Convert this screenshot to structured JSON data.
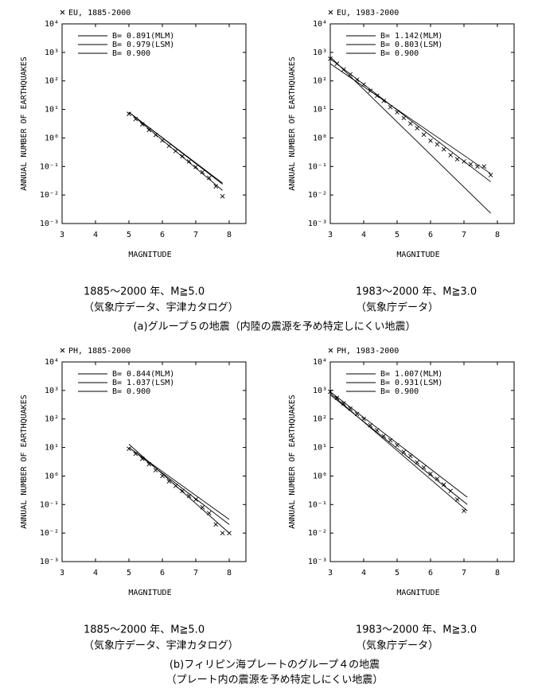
{
  "chart_data": [
    {
      "type": "line",
      "log_y": true,
      "xlabel": "MAGNITUDE",
      "ylabel": "ANNUAL NUMBER OF EARTHQUAKES",
      "xlim": [
        3,
        8.5
      ],
      "ylim": [
        0.001,
        10000
      ],
      "xticks": [
        3,
        4,
        5,
        6,
        7,
        8
      ],
      "yticks": [
        {
          "value": 0.001,
          "label": "10⁻³"
        },
        {
          "value": 0.01,
          "label": "10⁻²"
        },
        {
          "value": 0.1,
          "label": "10⁻¹"
        },
        {
          "value": 1,
          "label": "10⁰"
        },
        {
          "value": 10,
          "label": "10¹"
        },
        {
          "value": 100,
          "label": "10²"
        },
        {
          "value": 1000,
          "label": "10³"
        },
        {
          "value": 10000,
          "label": "10⁴"
        }
      ],
      "series": [
        {
          "name": "EU, 1885-2000",
          "marker": "x",
          "color": "#000000",
          "x": [
            5.0,
            5.2,
            5.4,
            5.6,
            5.8,
            6.0,
            6.2,
            6.4,
            6.6,
            6.8,
            7.0,
            7.2,
            7.4,
            7.6,
            7.8
          ],
          "values": [
            7,
            4.6,
            3.0,
            1.9,
            1.27,
            0.82,
            0.53,
            0.35,
            0.23,
            0.15,
            0.097,
            0.063,
            0.04,
            0.02,
            0.009
          ]
        },
        {
          "name": "B= 0.891(MLM)",
          "color": "#000000",
          "x": [
            5.0,
            7.8
          ],
          "values": [
            8,
            0.026
          ]
        },
        {
          "name": "B= 0.979(LSM)",
          "color": "#000000",
          "x": [
            5.0,
            7.8
          ],
          "values": [
            8,
            0.0145
          ]
        },
        {
          "name": "B= 0.900",
          "color": "#000000",
          "x": [
            5.0,
            7.8
          ],
          "values": [
            8,
            0.024
          ]
        }
      ]
    },
    {
      "type": "line",
      "log_y": true,
      "xlabel": "MAGNITUDE",
      "ylabel": "ANNUAL NUMBER OF EARTHQUAKES",
      "xlim": [
        3,
        8.5
      ],
      "ylim": [
        0.001,
        10000
      ],
      "xticks": [
        3,
        4,
        5,
        6,
        7,
        8
      ],
      "yticks": [
        {
          "value": 0.001,
          "label": "10⁻³"
        },
        {
          "value": 0.01,
          "label": "10⁻²"
        },
        {
          "value": 0.1,
          "label": "10⁻¹"
        },
        {
          "value": 1,
          "label": "10⁰"
        },
        {
          "value": 10,
          "label": "10¹"
        },
        {
          "value": 100,
          "label": "10²"
        },
        {
          "value": 1000,
          "label": "10³"
        },
        {
          "value": 10000,
          "label": "10⁴"
        }
      ],
      "series": [
        {
          "name": "EU, 1983-2000",
          "marker": "x",
          "color": "#000000",
          "x": [
            3.0,
            3.2,
            3.4,
            3.6,
            3.8,
            4.0,
            4.2,
            4.4,
            4.6,
            4.8,
            5.0,
            5.2,
            5.4,
            5.6,
            5.8,
            6.0,
            6.2,
            6.4,
            6.6,
            6.8,
            7.0,
            7.2,
            7.4,
            7.6,
            7.8
          ],
          "values": [
            600,
            400,
            250,
            170,
            110,
            75,
            45,
            30,
            20,
            12,
            8,
            5,
            3.2,
            2.2,
            1.3,
            0.8,
            0.6,
            0.4,
            0.25,
            0.18,
            0.15,
            0.12,
            0.1,
            0.1,
            0.05
          ]
        },
        {
          "name": "B= 1.142(MLM)",
          "color": "#000000",
          "x": [
            3.0,
            7.8
          ],
          "values": [
            700,
            0.0023
          ]
        },
        {
          "name": "B= 0.803(LSM)",
          "color": "#000000",
          "x": [
            3.0,
            7.8
          ],
          "values": [
            400,
            0.056
          ]
        },
        {
          "name": "B= 0.900",
          "color": "#000000",
          "x": [
            3.0,
            7.8
          ],
          "values": [
            600,
            0.029
          ]
        }
      ]
    },
    {
      "type": "line",
      "log_y": true,
      "xlabel": "MAGNITUDE",
      "ylabel": "ANNUAL NUMBER OF EARTHQUAKES",
      "xlim": [
        3,
        8.5
      ],
      "ylim": [
        0.001,
        10000
      ],
      "xticks": [
        3,
        4,
        5,
        6,
        7,
        8
      ],
      "yticks": [
        {
          "value": 0.001,
          "label": "10⁻³"
        },
        {
          "value": 0.01,
          "label": "10⁻²"
        },
        {
          "value": 0.1,
          "label": "10⁻¹"
        },
        {
          "value": 1,
          "label": "10⁰"
        },
        {
          "value": 10,
          "label": "10¹"
        },
        {
          "value": 100,
          "label": "10²"
        },
        {
          "value": 1000,
          "label": "10³"
        },
        {
          "value": 10000,
          "label": "10⁴"
        }
      ],
      "series": [
        {
          "name": "PH, 1885-2000",
          "marker": "x",
          "color": "#000000",
          "x": [
            5.0,
            5.2,
            5.4,
            5.6,
            5.8,
            6.0,
            6.2,
            6.4,
            6.6,
            6.8,
            7.0,
            7.2,
            7.4,
            7.6,
            7.8,
            8.0
          ],
          "values": [
            9,
            6,
            4,
            2.6,
            1.6,
            1.0,
            0.65,
            0.45,
            0.3,
            0.2,
            0.15,
            0.08,
            0.05,
            0.02,
            0.01,
            0.01
          ]
        },
        {
          "name": "B= 0.844(MLM)",
          "color": "#000000",
          "x": [
            5.0,
            8.0
          ],
          "values": [
            10,
            0.03
          ]
        },
        {
          "name": "B= 1.037(LSM)",
          "color": "#000000",
          "x": [
            5.0,
            8.0
          ],
          "values": [
            13,
            0.01
          ]
        },
        {
          "name": "B= 0.900",
          "color": "#000000",
          "x": [
            5.0,
            8.0
          ],
          "values": [
            10,
            0.02
          ]
        }
      ]
    },
    {
      "type": "line",
      "log_y": true,
      "xlabel": "MAGNITUDE",
      "ylabel": "ANNUAL NUMBER OF EARTHQUAKES",
      "xlim": [
        3,
        8.5
      ],
      "ylim": [
        0.001,
        10000
      ],
      "xticks": [
        3,
        4,
        5,
        6,
        7,
        8
      ],
      "yticks": [
        {
          "value": 0.001,
          "label": "10⁻³"
        },
        {
          "value": 0.01,
          "label": "10⁻²"
        },
        {
          "value": 0.1,
          "label": "10⁻¹"
        },
        {
          "value": 1,
          "label": "10⁰"
        },
        {
          "value": 10,
          "label": "10¹"
        },
        {
          "value": 100,
          "label": "10²"
        },
        {
          "value": 1000,
          "label": "10³"
        },
        {
          "value": 10000,
          "label": "10⁴"
        }
      ],
      "series": [
        {
          "name": "PH, 1983-2000",
          "marker": "x",
          "color": "#000000",
          "x": [
            3.0,
            3.2,
            3.4,
            3.6,
            3.8,
            4.0,
            4.2,
            4.4,
            4.6,
            4.8,
            5.0,
            5.2,
            5.4,
            5.6,
            5.8,
            6.0,
            6.2,
            6.4,
            6.6,
            6.8,
            7.0
          ],
          "values": [
            900,
            550,
            350,
            230,
            150,
            100,
            60,
            40,
            25,
            18,
            12,
            7,
            5,
            3,
            2,
            1.2,
            0.8,
            0.5,
            0.3,
            0.15,
            0.06
          ]
        },
        {
          "name": "B= 1.007(MLM)",
          "color": "#000000",
          "x": [
            3.0,
            7.1
          ],
          "values": [
            800,
            0.06
          ]
        },
        {
          "name": "B= 0.931(LSM)",
          "color": "#000000",
          "x": [
            3.0,
            7.1
          ],
          "values": [
            700,
            0.1
          ]
        },
        {
          "name": "B= 0.900",
          "color": "#000000",
          "x": [
            3.0,
            7.1
          ],
          "values": [
            900,
            0.18
          ]
        }
      ]
    }
  ],
  "captions": [
    [
      "1885～2000 年、M≧5.0",
      "（気象庁データ、宇津カタログ）"
    ],
    [
      "1983～2000 年、M≧3.0",
      "（気象庁データ）"
    ],
    [
      "1885～2000 年、M≧5.0",
      "（気象庁データ、宇津カタログ）"
    ],
    [
      "1983～2000 年、M≧3.0",
      "（気象庁データ）"
    ]
  ],
  "panel_titles": [
    [
      "(a)グループ５の地震（内陸の震源を予め特定しにくい地震）"
    ],
    [
      "(b)フィリピン海プレートのグループ４の地震",
      "（プレート内の震源を予め特定しにくい地震）"
    ]
  ]
}
